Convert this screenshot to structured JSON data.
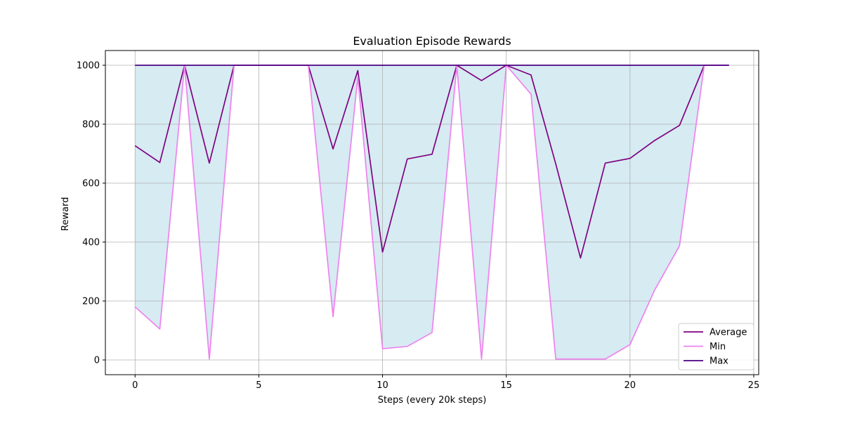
{
  "chart_data": {
    "type": "line",
    "title": "Evaluation Episode Rewards",
    "xlabel": "Steps (every 20k steps)",
    "ylabel": "Reward",
    "xlim": [
      -1.2,
      25.2
    ],
    "ylim": [
      -50,
      1050
    ],
    "xticks": [
      0,
      5,
      10,
      15,
      20,
      25
    ],
    "yticks": [
      0,
      200,
      400,
      600,
      800,
      1000
    ],
    "grid": true,
    "legend_position": "lower-right",
    "fill_between": {
      "lower": "Min",
      "upper": "Max",
      "color": "#add8e6"
    },
    "series": [
      {
        "name": "Average",
        "color": "#800080",
        "x": [
          0,
          1,
          2,
          3,
          4,
          5,
          6,
          7,
          8,
          9,
          10,
          11,
          12,
          13,
          14,
          15,
          16,
          17,
          18,
          19,
          20,
          21,
          22,
          23,
          24
        ],
        "values": [
          727,
          670,
          1000,
          668,
          1000,
          1000,
          1000,
          1000,
          716,
          982,
          366,
          682,
          698,
          1000,
          948,
          1000,
          967,
          665,
          346,
          668,
          684,
          745,
          796,
          1000,
          1000
        ]
      },
      {
        "name": "Min",
        "color": "#ee82ee",
        "x": [
          0,
          1,
          2,
          3,
          4,
          5,
          6,
          7,
          8,
          9,
          10,
          11,
          12,
          13,
          14,
          15,
          16,
          17,
          18,
          19,
          20,
          21,
          22,
          23,
          24
        ],
        "values": [
          180,
          105,
          1000,
          3,
          1000,
          1000,
          1000,
          1000,
          147,
          960,
          38,
          46,
          93,
          1000,
          3,
          1000,
          902,
          3,
          3,
          3,
          52,
          238,
          387,
          1000,
          1000
        ]
      },
      {
        "name": "Max",
        "color": "#4b0082",
        "x": [
          0,
          1,
          2,
          3,
          4,
          5,
          6,
          7,
          8,
          9,
          10,
          11,
          12,
          13,
          14,
          15,
          16,
          17,
          18,
          19,
          20,
          21,
          22,
          23,
          24
        ],
        "values": [
          1000,
          1000,
          1000,
          1000,
          1000,
          1000,
          1000,
          1000,
          1000,
          1000,
          1000,
          1000,
          1000,
          1000,
          1000,
          1000,
          1000,
          1000,
          1000,
          1000,
          1000,
          1000,
          1000,
          1000,
          1000
        ]
      }
    ]
  }
}
